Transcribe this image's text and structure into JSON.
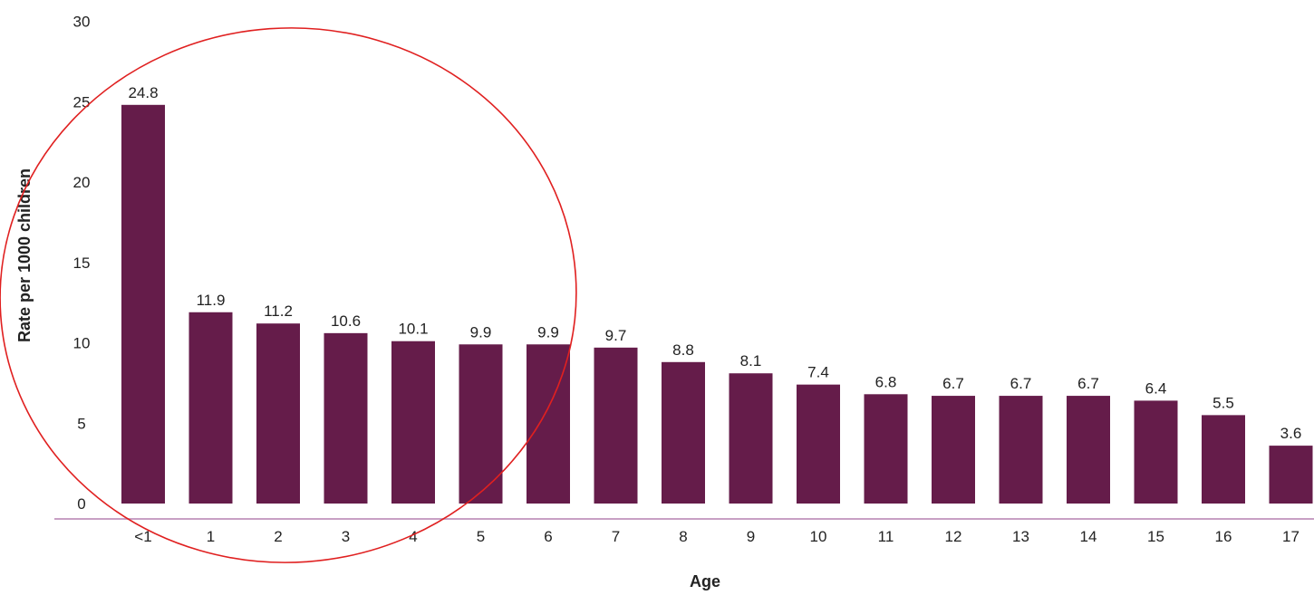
{
  "colors": {
    "bar": "#651c4a",
    "baseline": "#c8a0c4",
    "annotation": "#e02020"
  },
  "chart_data": {
    "type": "bar",
    "title": "",
    "xlabel": "Age",
    "ylabel": "Rate per 1000 children",
    "ylim": [
      0,
      30
    ],
    "yticks": [
      0,
      5,
      10,
      15,
      20,
      25,
      30
    ],
    "grid": false,
    "categories": [
      "<1",
      "1",
      "2",
      "3",
      "4",
      "5",
      "6",
      "7",
      "8",
      "9",
      "10",
      "11",
      "12",
      "13",
      "14",
      "15",
      "16",
      "17"
    ],
    "values": [
      24.8,
      11.9,
      11.2,
      10.6,
      10.1,
      9.9,
      9.9,
      9.7,
      8.8,
      8.1,
      7.4,
      6.8,
      6.7,
      6.7,
      6.7,
      6.4,
      5.5,
      3.6
    ],
    "value_labels": [
      "24.8",
      "11.9",
      "11.2",
      "10.6",
      "10.1",
      "9.9",
      "9.9",
      "9.7",
      "8.8",
      "8.1",
      "7.4",
      "6.8",
      "6.7",
      "6.7",
      "6.7",
      "6.4",
      "5.5",
      "3.6"
    ],
    "annotations": [
      {
        "type": "ellipse",
        "note": "highlights ages <1 to 6"
      }
    ]
  }
}
